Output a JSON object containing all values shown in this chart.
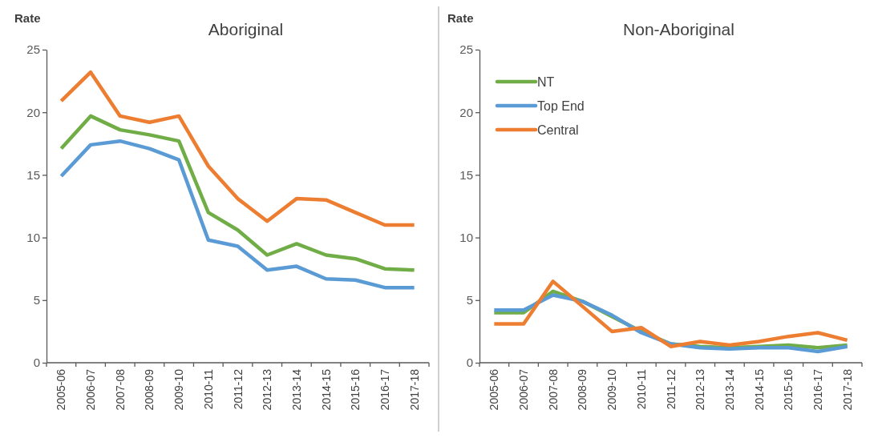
{
  "chart_data": [
    {
      "type": "line",
      "title": "Aboriginal",
      "ylabel": "Rate",
      "categories": [
        "2005-06",
        "2006-07",
        "2007-08",
        "2008-09",
        "2009-10",
        "2010-11",
        "2011-12",
        "2012-13",
        "2013-14",
        "2014-15",
        "2015-16",
        "2016-17",
        "2017-18"
      ],
      "ylim": [
        0,
        25
      ],
      "yticks": [
        0,
        5,
        10,
        15,
        20,
        25
      ],
      "legend": false,
      "series": [
        {
          "color": "#70ad47",
          "values": [
            17.1,
            19.7,
            18.6,
            18.2,
            17.7,
            12.0,
            10.6,
            8.6,
            9.5,
            8.6,
            8.3,
            7.5,
            7.4
          ]
        },
        {
          "color": "#5b9bd5",
          "values": [
            14.9,
            17.4,
            17.7,
            17.1,
            16.2,
            9.8,
            9.3,
            7.4,
            7.7,
            6.7,
            6.6,
            6.0,
            6.0
          ]
        },
        {
          "color": "#ed7d31",
          "values": [
            20.9,
            23.2,
            19.7,
            19.2,
            19.7,
            15.7,
            13.1,
            11.3,
            13.1,
            13.0,
            12.0,
            11.0,
            11.0
          ]
        }
      ]
    },
    {
      "type": "line",
      "title": "Non-Aboriginal",
      "ylabel": "Rate",
      "categories": [
        "2005-06",
        "2006-07",
        "2007-08",
        "2008-09",
        "2009-10",
        "2010-11",
        "2011-12",
        "2012-13",
        "2013-14",
        "2014-15",
        "2015-16",
        "2016-17",
        "2017-18"
      ],
      "ylim": [
        0,
        25
      ],
      "yticks": [
        0,
        5,
        10,
        15,
        20,
        25
      ],
      "legend": "top left",
      "series": [
        {
          "name": "NT",
          "color": "#70ad47",
          "values": [
            4.0,
            4.0,
            5.7,
            4.9,
            3.7,
            2.5,
            1.5,
            1.3,
            1.2,
            1.3,
            1.4,
            1.2,
            1.4
          ]
        },
        {
          "name": "Top End",
          "color": "#5b9bd5",
          "values": [
            4.2,
            4.2,
            5.4,
            4.9,
            3.8,
            2.4,
            1.5,
            1.2,
            1.1,
            1.2,
            1.2,
            0.9,
            1.3
          ]
        },
        {
          "name": "Central",
          "color": "#ed7d31",
          "values": [
            3.1,
            3.1,
            6.5,
            4.5,
            2.5,
            2.8,
            1.3,
            1.7,
            1.4,
            1.7,
            2.1,
            2.4,
            1.8
          ]
        }
      ]
    }
  ]
}
